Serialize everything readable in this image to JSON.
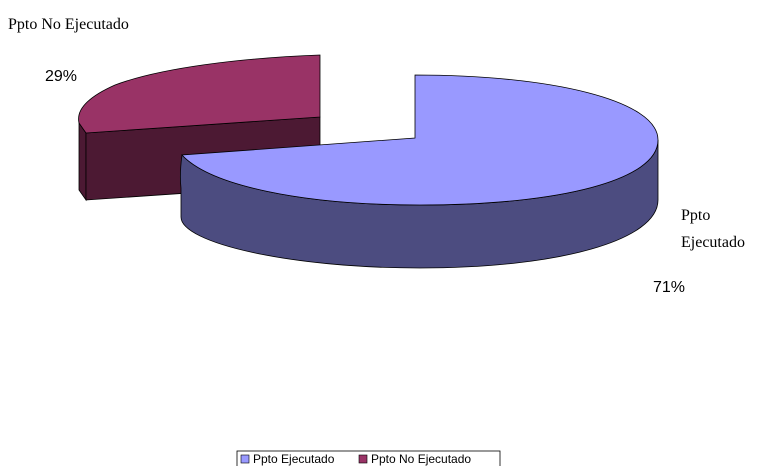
{
  "chart_data": {
    "type": "pie",
    "title": "",
    "three_d": true,
    "exploded": true,
    "legend_position": "bottom",
    "slices": [
      {
        "label": "Ppto Ejecutado",
        "label_lines": [
          "Ppto",
          "Ejecutado"
        ],
        "value": 71,
        "percent_label": "71%",
        "color": "#9999ff",
        "side_color": "#4c4c80"
      },
      {
        "label": "Ppto No Ejecutado",
        "label_lines": [
          "Ppto No Ejecutado"
        ],
        "value": 29,
        "percent_label": "29%",
        "color": "#993366",
        "side_color": "#4c1933"
      }
    ]
  }
}
